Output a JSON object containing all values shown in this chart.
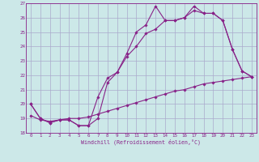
{
  "xlabel": "Windchill (Refroidissement éolien,°C)",
  "background_color": "#cce8e8",
  "grid_color": "#aaaacc",
  "line_color": "#882288",
  "xlim": [
    -0.5,
    23.5
  ],
  "ylim": [
    18,
    27
  ],
  "xticks": [
    0,
    1,
    2,
    3,
    4,
    5,
    6,
    7,
    8,
    9,
    10,
    11,
    12,
    13,
    14,
    15,
    16,
    17,
    18,
    19,
    20,
    21,
    22,
    23
  ],
  "yticks": [
    18,
    19,
    20,
    21,
    22,
    23,
    24,
    25,
    26,
    27
  ],
  "series1_x": [
    0,
    1,
    2,
    3,
    4,
    5,
    6,
    7,
    8,
    9,
    10,
    11,
    12,
    13,
    14,
    15,
    16,
    17,
    18,
    19,
    20,
    21,
    22,
    23
  ],
  "series1_y": [
    20.0,
    19.0,
    18.7,
    18.9,
    18.9,
    18.5,
    18.5,
    19.0,
    21.5,
    22.2,
    23.5,
    25.0,
    25.5,
    26.8,
    25.8,
    25.8,
    26.0,
    26.8,
    26.3,
    26.3,
    25.8,
    23.8,
    22.3,
    21.9
  ],
  "series2_x": [
    0,
    1,
    2,
    3,
    4,
    5,
    6,
    7,
    8,
    9,
    10,
    11,
    12,
    13,
    14,
    15,
    16,
    17,
    18,
    19,
    20,
    21,
    22,
    23
  ],
  "series2_y": [
    20.0,
    19.0,
    18.7,
    18.9,
    18.9,
    18.5,
    18.5,
    20.5,
    21.8,
    22.2,
    23.3,
    24.0,
    24.9,
    25.2,
    25.8,
    25.8,
    26.0,
    26.5,
    26.3,
    26.3,
    25.8,
    23.8,
    22.3,
    21.9
  ],
  "series3_x": [
    0,
    1,
    2,
    3,
    4,
    5,
    6,
    7,
    8,
    9,
    10,
    11,
    12,
    13,
    14,
    15,
    16,
    17,
    18,
    19,
    20,
    21,
    22,
    23
  ],
  "series3_y": [
    19.2,
    18.9,
    18.8,
    18.9,
    19.0,
    19.0,
    19.1,
    19.3,
    19.5,
    19.7,
    19.9,
    20.1,
    20.3,
    20.5,
    20.7,
    20.9,
    21.0,
    21.2,
    21.4,
    21.5,
    21.6,
    21.7,
    21.8,
    21.9
  ]
}
